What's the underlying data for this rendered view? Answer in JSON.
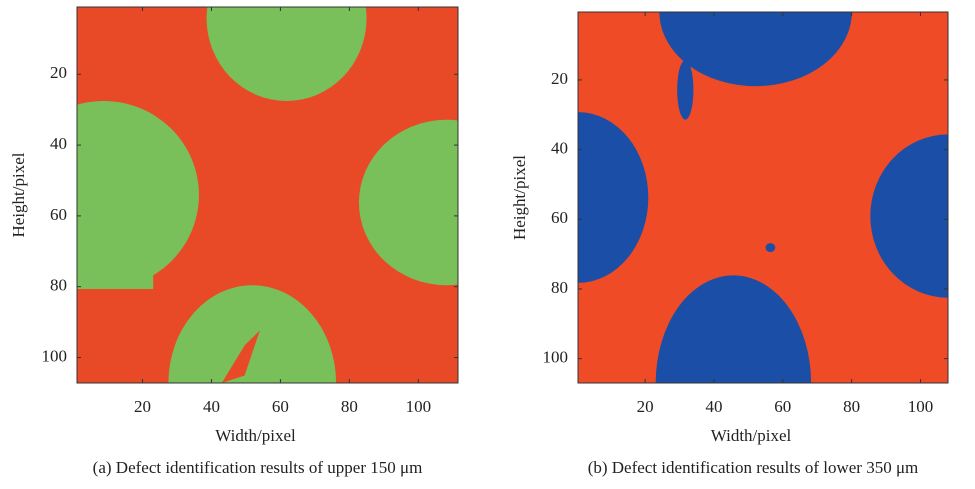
{
  "chart_data": [
    {
      "type": "heatmap",
      "caption": "(a) Defect identification results of upper 150 μm",
      "xlabel": "Width/pixel",
      "ylabel": "Height/pixel",
      "xlim": [
        1,
        111.5
      ],
      "ylim": [
        1,
        107.2
      ],
      "xticks": [
        20,
        40,
        60,
        80,
        100
      ],
      "yticks": [
        20,
        40,
        60,
        80,
        100
      ],
      "colors": [
        "#e84a27",
        "#79c05a"
      ]
    },
    {
      "type": "heatmap",
      "caption": "(b) Defect identification results of lower 350 μm",
      "xlabel": "Width/pixel",
      "ylabel": "Height/pixel",
      "xlim": [
        0.5,
        108
      ],
      "ylim": [
        0.5,
        107
      ],
      "xticks": [
        20,
        40,
        60,
        80,
        100
      ],
      "yticks": [
        20,
        40,
        60,
        80,
        100
      ],
      "colors": [
        "#ee4b26",
        "#1b4ea6"
      ]
    }
  ]
}
